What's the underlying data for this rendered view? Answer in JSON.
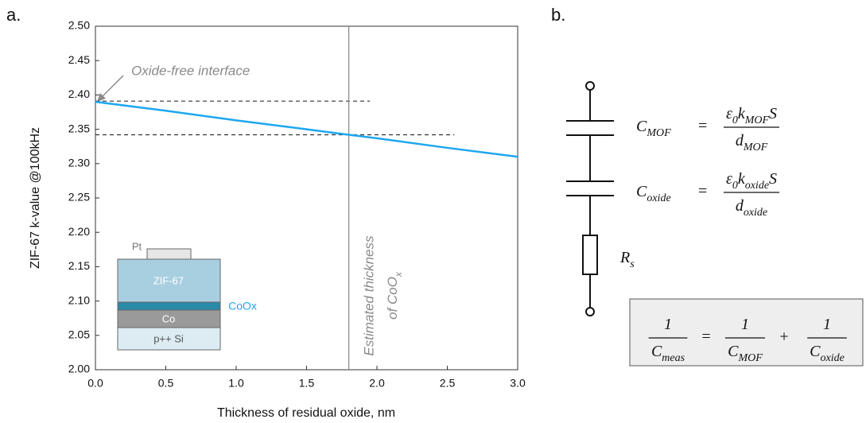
{
  "chart_data": {
    "type": "line",
    "x_label": "Thickness of residual oxide, nm",
    "y_label": "ZIF-67 k-value @100kHz",
    "x": [
      0,
      0.5,
      1,
      1.5,
      1.8,
      2,
      2.5,
      3
    ],
    "series": [
      {
        "color": "#1ea7f0",
        "values": [
          2.39,
          2.377,
          2.363,
          2.35,
          2.342,
          2.337,
          2.323,
          2.31
        ]
      }
    ],
    "xlim": [
      0,
      3
    ],
    "ylim": [
      2,
      2.5
    ],
    "xticks": [
      {
        "value": 0,
        "label": "0.0"
      },
      {
        "value": 0.5,
        "label": "0.5"
      },
      {
        "value": 1,
        "label": "1.0"
      },
      {
        "value": 1.5,
        "label": "1.5"
      },
      {
        "value": 2,
        "label": "2.0"
      },
      {
        "value": 2.5,
        "label": "2.5"
      },
      {
        "value": 3,
        "label": "3.0"
      }
    ],
    "yticks": [
      {
        "value": 2,
        "label": "2.00"
      },
      {
        "value": 2.05,
        "label": "2.05"
      },
      {
        "value": 2.1,
        "label": "2.10"
      },
      {
        "value": 2.15,
        "label": "2.15"
      },
      {
        "value": 2.2,
        "label": "2.20"
      },
      {
        "value": 2.25,
        "label": "2.25"
      },
      {
        "value": 2.3,
        "label": "2.30"
      },
      {
        "value": 2.35,
        "label": "2.35"
      },
      {
        "value": 2.4,
        "label": "2.40"
      },
      {
        "value": 2.45,
        "label": "2.45"
      },
      {
        "value": 2.5,
        "label": "2.50"
      }
    ],
    "dashed_lines": [
      {
        "y": 2.391,
        "x_end": 1.95
      },
      {
        "y": 2.342,
        "x_end": 2.55
      }
    ],
    "vertical_line": 1.8,
    "annotations": {
      "interface": "Oxide-free interface",
      "thickness_1": "Estimated thickness",
      "thickness_2": [
        "of CoO",
        "x"
      ]
    },
    "inset_labels": {
      "pt": "Pt",
      "zif": "ZIF-67",
      "coox": "CoOx",
      "co": "Co",
      "si": "p++ Si"
    }
  },
  "panels": {
    "a": "a.",
    "b": "b."
  },
  "circuit": {
    "c_mof": {
      "lhs": [
        "C",
        "MOF"
      ],
      "op": "=",
      "num": [
        "ε",
        "0",
        "k",
        "MOF",
        "S"
      ],
      "den": [
        "d",
        "MOF"
      ]
    },
    "c_oxide": {
      "lhs": [
        "C",
        "oxide"
      ],
      "op": "=",
      "num": [
        "ε",
        "0",
        "k",
        "oxide",
        "S"
      ],
      "den": [
        "d",
        "oxide"
      ]
    },
    "rs": [
      "R",
      "s"
    ],
    "total": {
      "terms": [
        {
          "num": [
            "1"
          ],
          "den": [
            "C",
            "meas"
          ]
        },
        {
          "num": [
            "1"
          ],
          "den": [
            "C",
            "MOF"
          ]
        },
        {
          "num": [
            "1"
          ],
          "den": [
            "C",
            "oxide"
          ]
        }
      ],
      "ops": [
        "=",
        "+"
      ]
    }
  }
}
